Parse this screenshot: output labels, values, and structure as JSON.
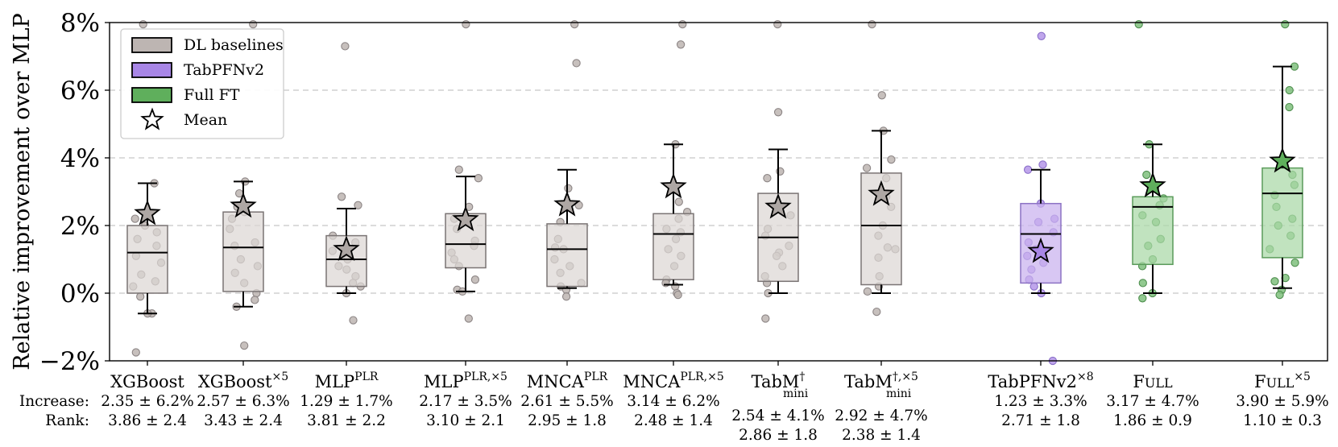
{
  "chart_data": {
    "type": "box",
    "ylabel": "Relative improvement over MLP",
    "ylim": [
      -2,
      8
    ],
    "yticks": [
      -2,
      0,
      2,
      4,
      6,
      8
    ],
    "ytick_labels": [
      "−2%",
      "0%",
      "2%",
      "4%",
      "6%",
      "8%"
    ],
    "grid": "horizontal dashed",
    "legend_position": "top-left",
    "legend": [
      {
        "key": "dl",
        "label": "DL baselines"
      },
      {
        "key": "tab",
        "label": "TabPFNv2"
      },
      {
        "key": "full",
        "label": "Full FT"
      },
      {
        "key": "mean",
        "label": "Mean"
      }
    ],
    "colors": {
      "dl": {
        "fill": "#dcd7d4",
        "edge": "#7a7474",
        "point": "#bdb5b2",
        "point_edge": "#8c8585"
      },
      "tab": {
        "fill": "#c9b1ef",
        "edge": "#8c72c4",
        "point": "#b596e9",
        "point_edge": "#8a6fc9"
      },
      "full": {
        "fill": "#a9d8a6",
        "edge": "#5a9b5a",
        "point": "#7fc07c",
        "point_edge": "#4f8f4f"
      },
      "axis": "#000000",
      "grid": "#c8c8c8"
    },
    "row_labels": {
      "increase": "Increase:",
      "rank": "Rank:"
    },
    "models": [
      {
        "name": "XGBoost",
        "sup": "",
        "sub": "",
        "group": "dl",
        "q1": 0.0,
        "median": 1.2,
        "q3": 2.0,
        "whisker_low": -0.6,
        "whisker_high": 3.25,
        "mean": 2.35,
        "points": [
          3.25,
          2.2,
          2.0,
          1.8,
          1.6,
          1.4,
          1.1,
          0.9,
          0.55,
          0.35,
          0.2,
          -0.1,
          -0.6,
          -0.6,
          -1.75,
          7.95
        ],
        "increase": "2.35 ± 6.2%",
        "rank": "3.86 ± 2.4"
      },
      {
        "name": "XGBoost",
        "sup": "×5",
        "sub": "",
        "group": "dl",
        "q1": 0.05,
        "median": 1.35,
        "q3": 2.4,
        "whisker_low": -0.4,
        "whisker_high": 3.3,
        "mean": 2.57,
        "points": [
          3.3,
          2.95,
          2.55,
          2.4,
          2.2,
          1.9,
          1.5,
          1.4,
          1.0,
          0.8,
          0.6,
          0.3,
          0.0,
          -0.2,
          -0.4,
          -1.55,
          7.95
        ],
        "increase": "2.57 ± 6.3%",
        "rank": "3.43 ± 2.4"
      },
      {
        "name": "MLP",
        "sup": "PLR",
        "sub": "",
        "group": "dl",
        "q1": 0.2,
        "median": 1.0,
        "q3": 1.7,
        "whisker_low": 0.0,
        "whisker_high": 2.5,
        "mean": 1.29,
        "points": [
          7.3,
          2.85,
          2.6,
          1.7,
          1.5,
          1.25,
          1.0,
          0.8,
          0.7,
          0.5,
          0.3,
          0.2,
          0.0,
          -0.8
        ],
        "increase": "1.29 ± 1.7%",
        "rank": "3.81 ± 2.2"
      },
      {
        "name": "MLP",
        "sup": "PLR,×5",
        "sub": "",
        "group": "dl",
        "q1": 0.75,
        "median": 1.45,
        "q3": 2.35,
        "whisker_low": 0.05,
        "whisker_high": 3.45,
        "mean": 2.17,
        "points": [
          3.65,
          3.4,
          2.55,
          2.2,
          1.9,
          1.55,
          1.4,
          1.2,
          1.0,
          0.8,
          0.4,
          0.1,
          0.05,
          -0.75,
          7.95
        ],
        "increase": "2.17 ± 3.5%",
        "rank": "3.10 ± 2.1"
      },
      {
        "name": "MNCA",
        "sup": "PLR",
        "sub": "",
        "group": "dl",
        "q1": 0.2,
        "median": 1.3,
        "q3": 2.05,
        "whisker_low": 0.15,
        "whisker_high": 3.65,
        "mean": 2.61,
        "points": [
          6.8,
          3.1,
          2.6,
          2.1,
          1.6,
          1.35,
          1.3,
          1.0,
          0.8,
          0.6,
          0.3,
          0.2,
          0.1,
          -0.1,
          7.95
        ],
        "increase": "2.61 ± 5.5%",
        "rank": "2.95 ± 1.8"
      },
      {
        "name": "MNCA",
        "sup": "PLR,×5",
        "sub": "",
        "group": "dl",
        "q1": 0.4,
        "median": 1.75,
        "q3": 2.35,
        "whisker_low": 0.25,
        "whisker_high": 4.4,
        "mean": 3.14,
        "points": [
          7.35,
          4.4,
          2.7,
          2.4,
          2.2,
          1.9,
          1.8,
          1.6,
          1.3,
          1.1,
          0.8,
          0.4,
          0.3,
          0.2,
          0.0,
          -0.05,
          7.95
        ],
        "increase": "3.14 ± 6.2%",
        "rank": "2.48 ± 1.4"
      },
      {
        "name": "TabM",
        "sup": "†",
        "sub": "mini",
        "group": "dl",
        "q1": 0.35,
        "median": 1.65,
        "q3": 2.95,
        "whisker_low": 0.0,
        "whisker_high": 4.25,
        "mean": 2.54,
        "points": [
          5.35,
          3.6,
          3.4,
          2.6,
          2.3,
          1.9,
          1.7,
          1.4,
          1.2,
          1.1,
          0.8,
          0.5,
          0.3,
          0.0,
          -0.75,
          7.95
        ],
        "increase": "2.54 ± 4.1%",
        "rank": "2.86 ± 1.8"
      },
      {
        "name": "TabM",
        "sup": "†,×5",
        "sub": "mini",
        "group": "dl",
        "q1": 0.25,
        "median": 2.0,
        "q3": 3.55,
        "whisker_low": 0.0,
        "whisker_high": 4.8,
        "mean": 2.92,
        "points": [
          5.85,
          4.8,
          3.95,
          3.7,
          3.4,
          2.85,
          2.55,
          2.0,
          1.7,
          1.35,
          1.3,
          1.05,
          0.5,
          0.2,
          0.05,
          -0.55,
          7.95
        ],
        "increase": "2.92 ± 4.7%",
        "rank": "2.38 ± 1.4"
      },
      {
        "name": "TabPFNv2",
        "sup": "×8",
        "sub": "",
        "group": "tab",
        "q1": 0.3,
        "median": 1.75,
        "q3": 2.65,
        "whisker_low": 0.0,
        "whisker_high": 3.65,
        "mean": 1.23,
        "points": [
          7.6,
          3.8,
          3.65,
          2.65,
          2.2,
          2.1,
          1.8,
          1.5,
          1.3,
          1.1,
          0.9,
          0.7,
          0.4,
          0.2,
          0.0,
          -2.0
        ],
        "increase": "1.23 ± 3.3%",
        "rank": "2.71 ± 1.8"
      },
      {
        "name": "Full",
        "sup": "",
        "sub": "",
        "group": "full",
        "smallcaps": true,
        "q1": 0.85,
        "median": 2.55,
        "q3": 2.85,
        "whisker_low": 0.0,
        "whisker_high": 4.4,
        "mean": 3.17,
        "points": [
          7.95,
          4.4,
          3.5,
          3.1,
          2.8,
          2.6,
          2.3,
          2.1,
          1.6,
          1.4,
          1.0,
          0.8,
          0.3,
          0.0,
          -0.15
        ],
        "increase": "3.17 ± 4.7%",
        "rank": "1.86 ± 0.9"
      },
      {
        "name": "Full",
        "sup": "×5",
        "sub": "",
        "group": "full",
        "smallcaps": true,
        "q1": 1.05,
        "median": 2.95,
        "q3": 3.7,
        "whisker_low": 0.15,
        "whisker_high": 6.7,
        "mean": 3.9,
        "points": [
          7.95,
          6.7,
          6.0,
          5.5,
          4.0,
          3.5,
          3.2,
          2.9,
          2.55,
          2.2,
          2.0,
          1.7,
          1.3,
          0.9,
          0.45,
          0.35,
          0.1,
          -0.05
        ],
        "increase": "3.90 ± 5.9%",
        "rank": "1.10 ± 0.3"
      }
    ]
  }
}
